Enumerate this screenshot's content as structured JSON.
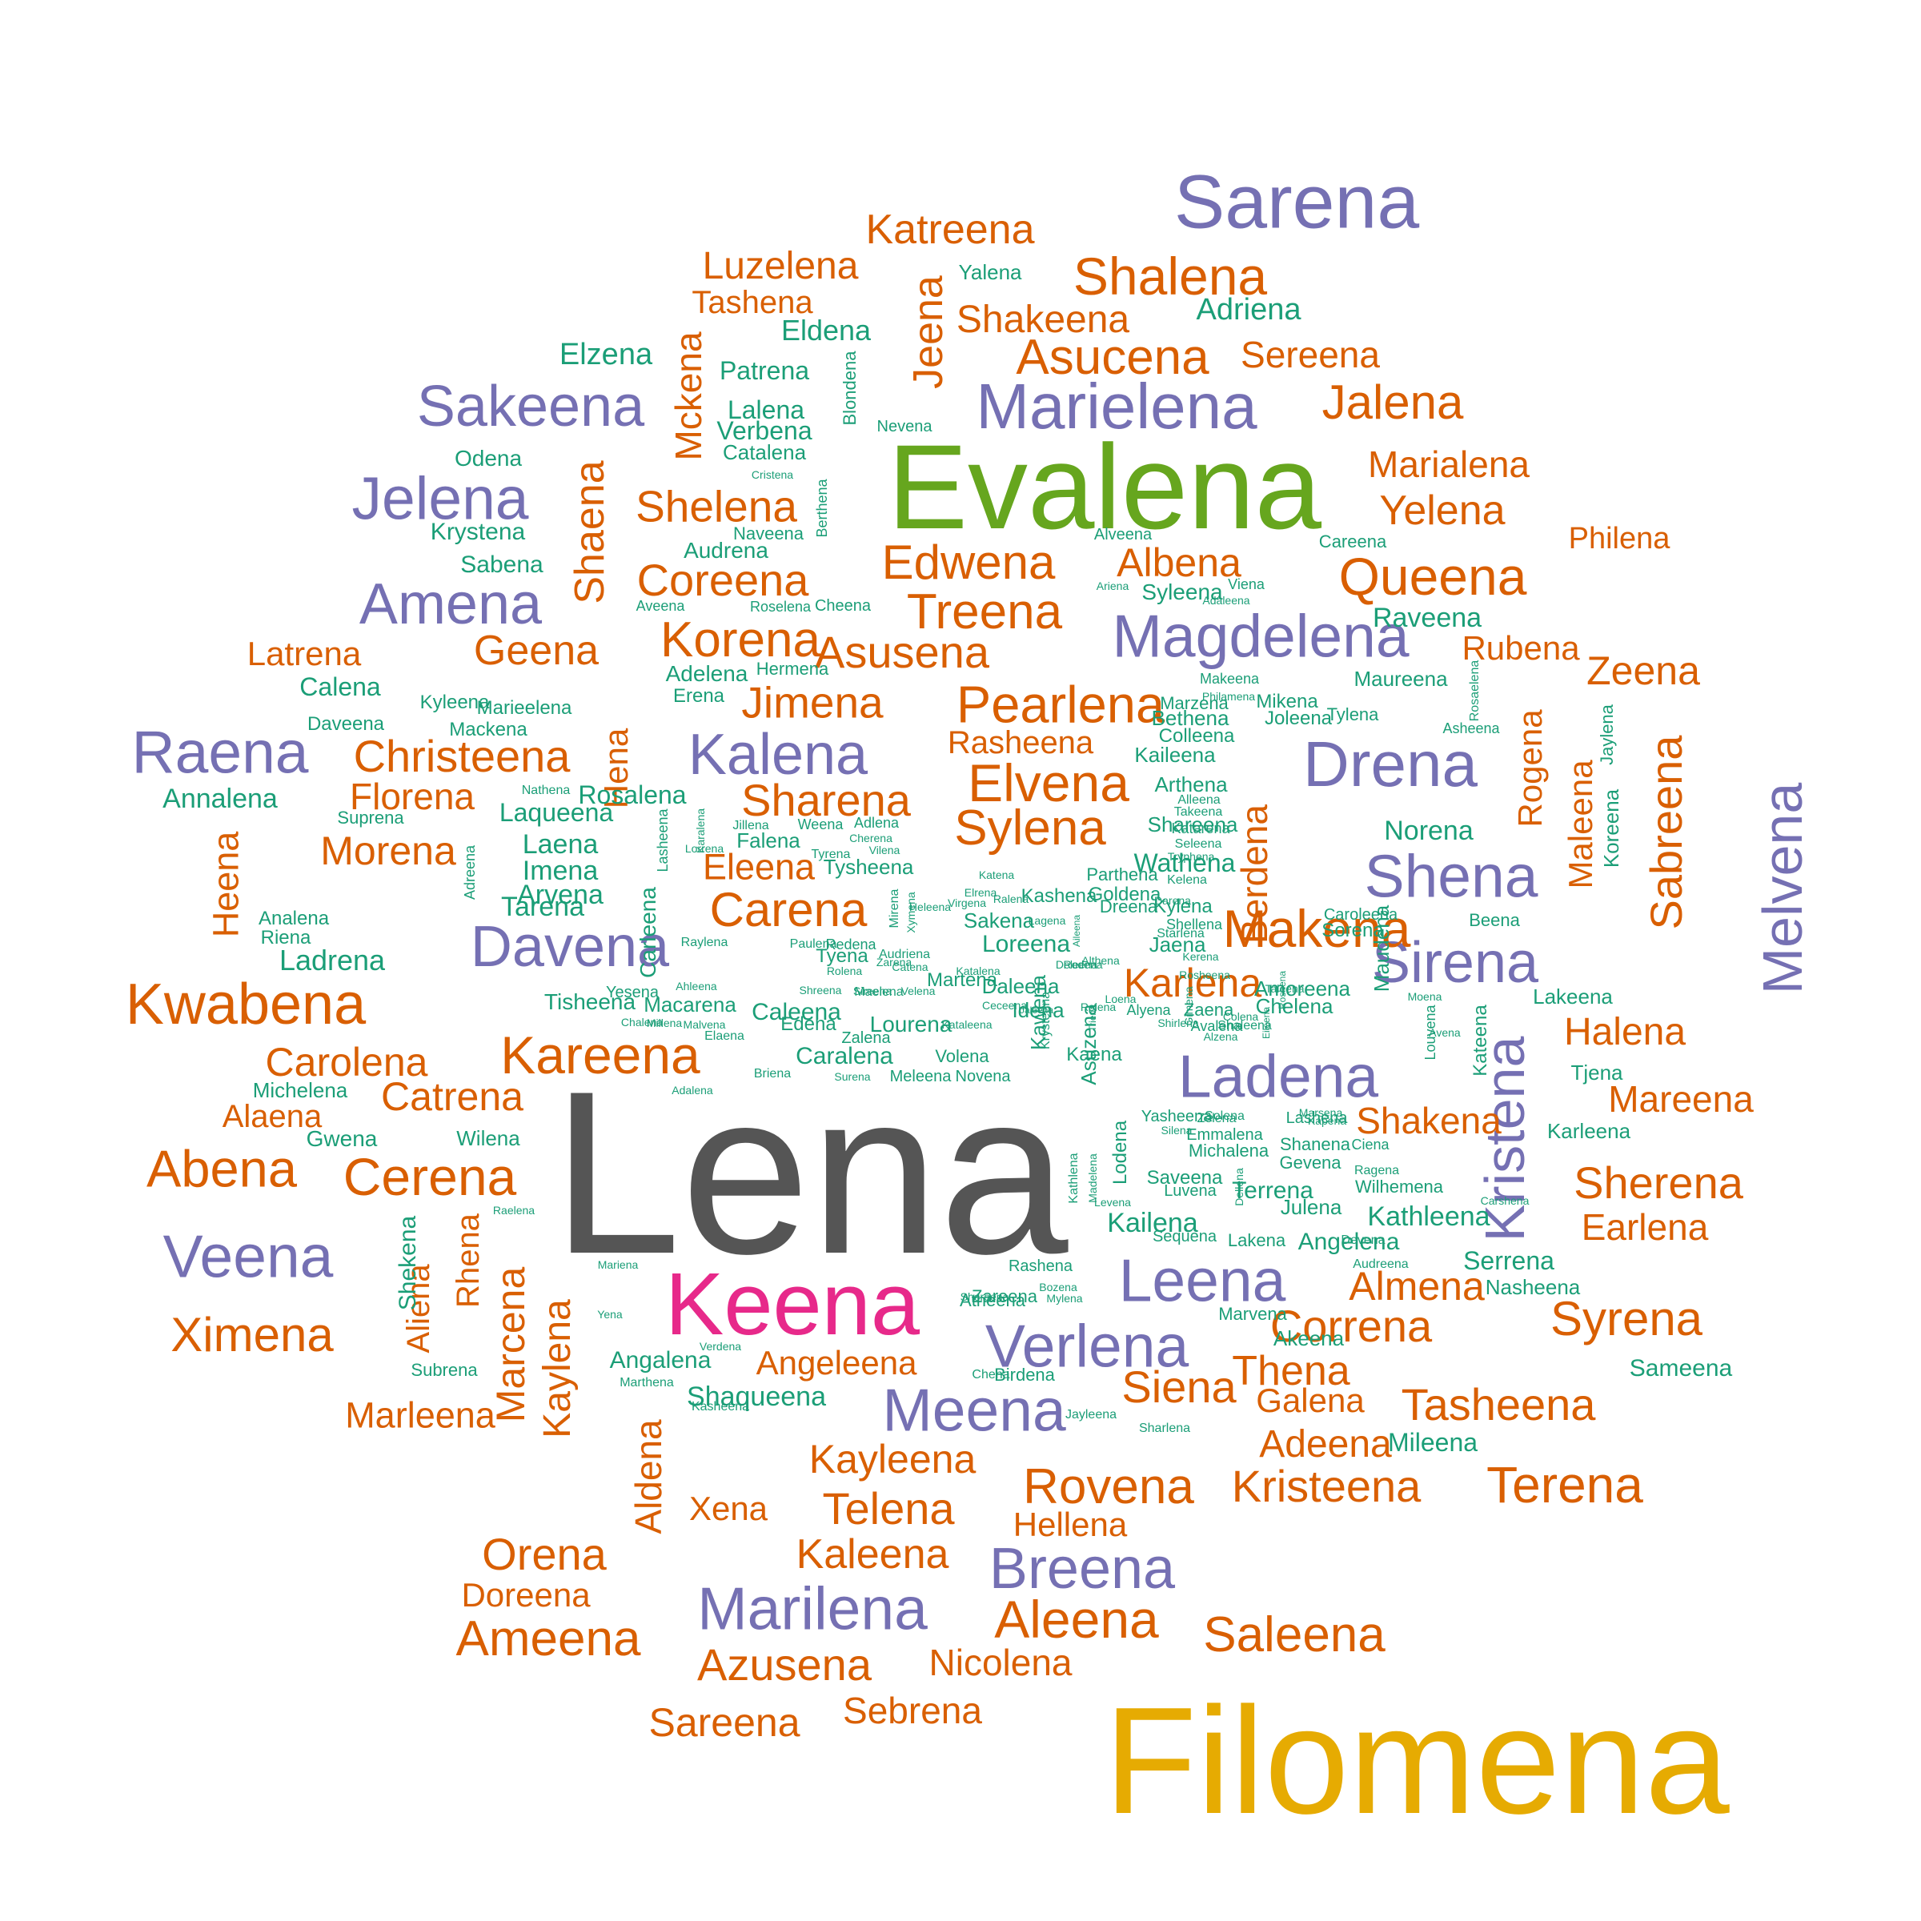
{
  "palette": {
    "orange": "#d95f02",
    "teal": "#1b9e77",
    "purple": "#7570b3",
    "green": "#66a61e",
    "pink": "#e7298a",
    "gold": "#e6ab02",
    "gray": "#555555"
  },
  "words": [
    {
      "t": "Lena",
      "c": 6
    },
    {
      "t": "Filomena",
      "c": 5
    },
    {
      "t": "Evalena",
      "c": 3
    },
    {
      "t": "Keena",
      "c": 4
    },
    {
      "t": "Sarena",
      "c": 2
    },
    {
      "t": "Marielena",
      "c": 2
    },
    {
      "t": "Magdelena",
      "c": 2
    },
    {
      "t": "Drena",
      "c": 2
    },
    {
      "t": "Shena",
      "c": 2
    },
    {
      "t": "Sirena",
      "c": 2
    },
    {
      "t": "Melvena",
      "c": 2
    },
    {
      "t": "Ladena",
      "c": 2
    },
    {
      "t": "Kristena",
      "c": 2
    },
    {
      "t": "Leena",
      "c": 2
    },
    {
      "t": "Verlena",
      "c": 2
    },
    {
      "t": "Meena",
      "c": 2
    },
    {
      "t": "Breena",
      "c": 2
    },
    {
      "t": "Marilena",
      "c": 2
    },
    {
      "t": "Sakeena",
      "c": 2
    },
    {
      "t": "Jelena",
      "c": 2
    },
    {
      "t": "Amena",
      "c": 2
    },
    {
      "t": "Raena",
      "c": 2
    },
    {
      "t": "Veena",
      "c": 2
    },
    {
      "t": "Davena",
      "c": 2
    },
    {
      "t": "Kalena",
      "c": 2
    },
    {
      "t": "Katreena",
      "c": 0
    },
    {
      "t": "Luzelena",
      "c": 0
    },
    {
      "t": "Tashena",
      "c": 0
    },
    {
      "t": "Shalena",
      "c": 0
    },
    {
      "t": "Shakeena",
      "c": 0
    },
    {
      "t": "Asucena",
      "c": 0
    },
    {
      "t": "Sereena",
      "c": 0
    },
    {
      "t": "Jalena",
      "c": 0
    },
    {
      "t": "Jeena",
      "c": 0
    },
    {
      "t": "Mckena",
      "c": 0
    },
    {
      "t": "Shaena",
      "c": 0
    },
    {
      "t": "Marialena",
      "c": 0
    },
    {
      "t": "Yelena",
      "c": 0
    },
    {
      "t": "Philena",
      "c": 0
    },
    {
      "t": "Queena",
      "c": 0
    },
    {
      "t": "Shelena",
      "c": 0
    },
    {
      "t": "Coreena",
      "c": 0
    },
    {
      "t": "Edwena",
      "c": 0
    },
    {
      "t": "Albena",
      "c": 0
    },
    {
      "t": "Treena",
      "c": 0
    },
    {
      "t": "Korena",
      "c": 0
    },
    {
      "t": "Asusena",
      "c": 0
    },
    {
      "t": "Geena",
      "c": 0
    },
    {
      "t": "Latrena",
      "c": 0
    },
    {
      "t": "Rubena",
      "c": 0
    },
    {
      "t": "Zeena",
      "c": 0
    },
    {
      "t": "Jimena",
      "c": 0
    },
    {
      "t": "Pearlena",
      "c": 0
    },
    {
      "t": "Christeena",
      "c": 0
    },
    {
      "t": "Rasheena",
      "c": 0
    },
    {
      "t": "Florena",
      "c": 0
    },
    {
      "t": "Sharena",
      "c": 0
    },
    {
      "t": "Elvena",
      "c": 0
    },
    {
      "t": "Hena",
      "c": 0
    },
    {
      "t": "Rogena",
      "c": 0
    },
    {
      "t": "Maleena",
      "c": 0
    },
    {
      "t": "Sabreena",
      "c": 0
    },
    {
      "t": "Heena",
      "c": 0
    },
    {
      "t": "Morena",
      "c": 0
    },
    {
      "t": "Sylena",
      "c": 0
    },
    {
      "t": "Berdena",
      "c": 0
    },
    {
      "t": "Makena",
      "c": 0
    },
    {
      "t": "Eleena",
      "c": 0
    },
    {
      "t": "Carena",
      "c": 0
    },
    {
      "t": "Kwabena",
      "c": 0
    },
    {
      "t": "Karlena",
      "c": 0
    },
    {
      "t": "Halena",
      "c": 0
    },
    {
      "t": "Kareena",
      "c": 0
    },
    {
      "t": "Carolena",
      "c": 0
    },
    {
      "t": "Catrena",
      "c": 0
    },
    {
      "t": "Mareena",
      "c": 0
    },
    {
      "t": "Alaena",
      "c": 0
    },
    {
      "t": "Shakena",
      "c": 0
    },
    {
      "t": "Abena",
      "c": 0
    },
    {
      "t": "Cerena",
      "c": 0
    },
    {
      "t": "Sherena",
      "c": 0
    },
    {
      "t": "Earlena",
      "c": 0
    },
    {
      "t": "Aliena",
      "c": 0
    },
    {
      "t": "Rhena",
      "c": 0
    },
    {
      "t": "Marcena",
      "c": 0
    },
    {
      "t": "Kaylena",
      "c": 0
    },
    {
      "t": "Almena",
      "c": 0
    },
    {
      "t": "Ximena",
      "c": 0
    },
    {
      "t": "Correna",
      "c": 0
    },
    {
      "t": "Syrena",
      "c": 0
    },
    {
      "t": "Angeleena",
      "c": 0
    },
    {
      "t": "Thena",
      "c": 0
    },
    {
      "t": "Siena",
      "c": 0
    },
    {
      "t": "Galena",
      "c": 0
    },
    {
      "t": "Tasheena",
      "c": 0
    },
    {
      "t": "Marleena",
      "c": 0
    },
    {
      "t": "Adeena",
      "c": 0
    },
    {
      "t": "Kayleena",
      "c": 0
    },
    {
      "t": "Aldena",
      "c": 0
    },
    {
      "t": "Terena",
      "c": 0
    },
    {
      "t": "Rovena",
      "c": 0
    },
    {
      "t": "Kristeena",
      "c": 0
    },
    {
      "t": "Xena",
      "c": 0
    },
    {
      "t": "Telena",
      "c": 0
    },
    {
      "t": "Hellena",
      "c": 0
    },
    {
      "t": "Orena",
      "c": 0
    },
    {
      "t": "Kaleena",
      "c": 0
    },
    {
      "t": "Doreena",
      "c": 0
    },
    {
      "t": "Aleena",
      "c": 0
    },
    {
      "t": "Saleena",
      "c": 0
    },
    {
      "t": "Ameena",
      "c": 0
    },
    {
      "t": "Azusena",
      "c": 0
    },
    {
      "t": "Nicolena",
      "c": 0
    },
    {
      "t": "Sareena",
      "c": 0
    },
    {
      "t": "Sebrena",
      "c": 0
    },
    {
      "t": "Yalena",
      "c": 1
    },
    {
      "t": "Adriena",
      "c": 1
    },
    {
      "t": "Eldena",
      "c": 1
    },
    {
      "t": "Elzena",
      "c": 1
    },
    {
      "t": "Patrena",
      "c": 1
    },
    {
      "t": "Blondena",
      "c": 1
    },
    {
      "t": "Lalena",
      "c": 1
    },
    {
      "t": "Verbena",
      "c": 1
    },
    {
      "t": "Nevena",
      "c": 1
    },
    {
      "t": "Odena",
      "c": 1
    },
    {
      "t": "Catalena",
      "c": 1
    },
    {
      "t": "Cristena",
      "c": 1
    },
    {
      "t": "Berthena",
      "c": 1
    },
    {
      "t": "Krystena",
      "c": 1
    },
    {
      "t": "Naveena",
      "c": 1
    },
    {
      "t": "Audrena",
      "c": 1
    },
    {
      "t": "Alveena",
      "c": 1
    },
    {
      "t": "Careena",
      "c": 1
    },
    {
      "t": "Sabena",
      "c": 1
    },
    {
      "t": "Ariena",
      "c": 1
    },
    {
      "t": "Viena",
      "c": 1
    },
    {
      "t": "Syleena",
      "c": 1
    },
    {
      "t": "Adaleena",
      "c": 1
    },
    {
      "t": "Raveena",
      "c": 1
    },
    {
      "t": "Aveena",
      "c": 1
    },
    {
      "t": "Roselena",
      "c": 1
    },
    {
      "t": "Cheena",
      "c": 1
    },
    {
      "t": "Calena",
      "c": 1
    },
    {
      "t": "Adelena",
      "c": 1
    },
    {
      "t": "Hermena",
      "c": 1
    },
    {
      "t": "Makeena",
      "c": 1
    },
    {
      "t": "Maureena",
      "c": 1
    },
    {
      "t": "Philamena",
      "c": 1
    },
    {
      "t": "Erena",
      "c": 1
    },
    {
      "t": "Marzena",
      "c": 1
    },
    {
      "t": "Tylena",
      "c": 1
    },
    {
      "t": "Rosaelena",
      "c": 1
    },
    {
      "t": "Kyleena",
      "c": 1
    },
    {
      "t": "Marieelena",
      "c": 1
    },
    {
      "t": "Mikena",
      "c": 1
    },
    {
      "t": "Daveena",
      "c": 1
    },
    {
      "t": "Mackena",
      "c": 1
    },
    {
      "t": "Bethena",
      "c": 1
    },
    {
      "t": "Joleena",
      "c": 1
    },
    {
      "t": "Asheena",
      "c": 1
    },
    {
      "t": "Jaylena",
      "c": 1
    },
    {
      "t": "Colleena",
      "c": 1
    },
    {
      "t": "Kaileena",
      "c": 1
    },
    {
      "t": "Nathena",
      "c": 1
    },
    {
      "t": "Rosalena",
      "c": 1
    },
    {
      "t": "Annalena",
      "c": 1
    },
    {
      "t": "Arthena",
      "c": 1
    },
    {
      "t": "Alleena",
      "c": 1
    },
    {
      "t": "Shareena",
      "c": 1
    },
    {
      "t": "Koreena",
      "c": 1
    },
    {
      "t": "Suprena",
      "c": 1
    },
    {
      "t": "Laqueena",
      "c": 1
    },
    {
      "t": "Karalena",
      "c": 1
    },
    {
      "t": "Lasheena",
      "c": 1
    },
    {
      "t": "Jillena",
      "c": 1
    },
    {
      "t": "Weena",
      "c": 1
    },
    {
      "t": "Adlena",
      "c": 1
    },
    {
      "t": "Takeena",
      "c": 1
    },
    {
      "t": "Katarena",
      "c": 1
    },
    {
      "t": "Seleena",
      "c": 1
    },
    {
      "t": "Norena",
      "c": 1
    },
    {
      "t": "Laena",
      "c": 1
    },
    {
      "t": "Lorrena",
      "c": 1
    },
    {
      "t": "Falena",
      "c": 1
    },
    {
      "t": "Cherena",
      "c": 1
    },
    {
      "t": "Vilena",
      "c": 1
    },
    {
      "t": "Tryphena",
      "c": 1
    },
    {
      "t": "Imena",
      "c": 1
    },
    {
      "t": "Tyrena",
      "c": 1
    },
    {
      "t": "Wathena",
      "c": 1
    },
    {
      "t": "Adreena",
      "c": 1
    },
    {
      "t": "Arvena",
      "c": 1
    },
    {
      "t": "Tysheena",
      "c": 1
    },
    {
      "t": "Katena",
      "c": 1
    },
    {
      "t": "Parthena",
      "c": 1
    },
    {
      "t": "Kelena",
      "c": 1
    },
    {
      "t": "Elrena",
      "c": 1
    },
    {
      "t": "Ralena",
      "c": 1
    },
    {
      "t": "Kashena",
      "c": 1
    },
    {
      "t": "Goldena",
      "c": 1
    },
    {
      "t": "Tarena",
      "c": 1
    },
    {
      "t": "Carleena",
      "c": 1
    },
    {
      "t": "Darena",
      "c": 1
    },
    {
      "t": "Caroleena",
      "c": 1
    },
    {
      "t": "Analena",
      "c": 1
    },
    {
      "t": "Mirena",
      "c": 1
    },
    {
      "t": "Virgena",
      "c": 1
    },
    {
      "t": "Dreena",
      "c": 1
    },
    {
      "t": "Kylena",
      "c": 1
    },
    {
      "t": "Shellena",
      "c": 1
    },
    {
      "t": "Beena",
      "c": 1
    },
    {
      "t": "Riena",
      "c": 1
    },
    {
      "t": "Xymena",
      "c": 1
    },
    {
      "t": "Heleena",
      "c": 1
    },
    {
      "t": "Sakena",
      "c": 1
    },
    {
      "t": "Lagena",
      "c": 1
    },
    {
      "t": "Starlena",
      "c": 1
    },
    {
      "t": "Maudena",
      "c": 1
    },
    {
      "t": "Ladrena",
      "c": 1
    },
    {
      "t": "Raylena",
      "c": 1
    },
    {
      "t": "Paulena",
      "c": 1
    },
    {
      "t": "Redena",
      "c": 1
    },
    {
      "t": "Loreena",
      "c": 1
    },
    {
      "t": "Aileena",
      "c": 1
    },
    {
      "t": "Jaena",
      "c": 1
    },
    {
      "t": "Sorena",
      "c": 1
    },
    {
      "t": "Audriena",
      "c": 1
    },
    {
      "t": "Zarena",
      "c": 1
    },
    {
      "t": "Kerena",
      "c": 1
    },
    {
      "t": "Rodena",
      "c": 1
    },
    {
      "t": "Tyena",
      "c": 1
    },
    {
      "t": "Catena",
      "c": 1
    },
    {
      "t": "Rolena",
      "c": 1
    },
    {
      "t": "Martena",
      "c": 1
    },
    {
      "t": "Deleena",
      "c": 1
    },
    {
      "t": "Daleena",
      "c": 1
    },
    {
      "t": "Amoreena",
      "c": 1
    },
    {
      "t": "Ahleena",
      "c": 1
    },
    {
      "t": "Shreena",
      "c": 1
    },
    {
      "t": "Roshena",
      "c": 1
    },
    {
      "t": "Sireena",
      "c": 1
    },
    {
      "t": "Yesena",
      "c": 1
    },
    {
      "t": "Velena",
      "c": 1
    },
    {
      "t": "Katalena",
      "c": 1
    },
    {
      "t": "Althena",
      "c": 1
    },
    {
      "t": "Taleena",
      "c": 1
    },
    {
      "t": "Chelena",
      "c": 1
    },
    {
      "t": "Rosheena",
      "c": 1
    },
    {
      "t": "Maelena",
      "c": 1
    },
    {
      "t": "Gimena",
      "c": 1
    },
    {
      "t": "Loena",
      "c": 1
    },
    {
      "t": "Idena",
      "c": 1
    },
    {
      "t": "Jaleena",
      "c": 1
    },
    {
      "t": "Ceceena",
      "c": 1
    },
    {
      "t": "Alyena",
      "c": 1
    },
    {
      "t": "Zaena",
      "c": 1
    },
    {
      "t": "Moena",
      "c": 1
    },
    {
      "t": "Lakeena",
      "c": 1
    },
    {
      "t": "Macarena",
      "c": 1
    },
    {
      "t": "Caleena",
      "c": 1
    },
    {
      "t": "Relena",
      "c": 1
    },
    {
      "t": "Shirlena",
      "c": 1
    },
    {
      "t": "Colena",
      "c": 1
    },
    {
      "t": "Kataleena",
      "c": 1
    },
    {
      "t": "Tisheena",
      "c": 1
    },
    {
      "t": "Chalena",
      "c": 1
    },
    {
      "t": "Millena",
      "c": 1
    },
    {
      "t": "Malvena",
      "c": 1
    },
    {
      "t": "Edena",
      "c": 1
    },
    {
      "t": "Lourena",
      "c": 1
    },
    {
      "t": "Avalena",
      "c": 1
    },
    {
      "t": "Shaleena",
      "c": 1
    },
    {
      "t": "Kawena",
      "c": 1
    },
    {
      "t": "Krysteena",
      "c": 1
    },
    {
      "t": "Triena",
      "c": 1
    },
    {
      "t": "Louvena",
      "c": 1
    },
    {
      "t": "Avena",
      "c": 1
    },
    {
      "t": "Kateena",
      "c": 1
    },
    {
      "t": "Elaena",
      "c": 1
    },
    {
      "t": "Zalena",
      "c": 1
    },
    {
      "t": "Alzena",
      "c": 1
    },
    {
      "t": "Asuzena",
      "c": 1
    },
    {
      "t": "Caralena",
      "c": 1
    },
    {
      "t": "Volena",
      "c": 1
    },
    {
      "t": "Kaena",
      "c": 1
    },
    {
      "t": "Eileena",
      "c": 1
    },
    {
      "t": "Briena",
      "c": 1
    },
    {
      "t": "Surena",
      "c": 1
    },
    {
      "t": "Meleena",
      "c": 1
    },
    {
      "t": "Novena",
      "c": 1
    },
    {
      "t": "Tjena",
      "c": 1
    },
    {
      "t": "Adalena",
      "c": 1
    },
    {
      "t": "Michelena",
      "c": 1
    },
    {
      "t": "Marsena",
      "c": 1
    },
    {
      "t": "Kapena",
      "c": 1
    },
    {
      "t": "Yasheena",
      "c": 1
    },
    {
      "t": "Solena",
      "c": 1
    },
    {
      "t": "Lashena",
      "c": 1
    },
    {
      "t": "Zelena",
      "c": 1
    },
    {
      "t": "Gwena",
      "c": 1
    },
    {
      "t": "Wilena",
      "c": 1
    },
    {
      "t": "Lodena",
      "c": 1
    },
    {
      "t": "Silena",
      "c": 1
    },
    {
      "t": "Emmalena",
      "c": 1
    },
    {
      "t": "Karleena",
      "c": 1
    },
    {
      "t": "Michalena",
      "c": 1
    },
    {
      "t": "Shanena",
      "c": 1
    },
    {
      "t": "Ciena",
      "c": 1
    },
    {
      "t": "Madelena",
      "c": 1
    },
    {
      "t": "Kathlena",
      "c": 1
    },
    {
      "t": "Saveena",
      "c": 1
    },
    {
      "t": "Gevena",
      "c": 1
    },
    {
      "t": "Ragena",
      "c": 1
    },
    {
      "t": "Luvena",
      "c": 1
    },
    {
      "t": "Dellena",
      "c": 1
    },
    {
      "t": "Terrena",
      "c": 1
    },
    {
      "t": "Wilhemena",
      "c": 1
    },
    {
      "t": "Raelena",
      "c": 1
    },
    {
      "t": "Levena",
      "c": 1
    },
    {
      "t": "Julena",
      "c": 1
    },
    {
      "t": "Kathleena",
      "c": 1
    },
    {
      "t": "Kailena",
      "c": 1
    },
    {
      "t": "Carshena",
      "c": 1
    },
    {
      "t": "Devena",
      "c": 1
    },
    {
      "t": "Sequena",
      "c": 1
    },
    {
      "t": "Lakena",
      "c": 1
    },
    {
      "t": "Angelena",
      "c": 1
    },
    {
      "t": "Serrena",
      "c": 1
    },
    {
      "t": "Mariena",
      "c": 1
    },
    {
      "t": "Rashena",
      "c": 1
    },
    {
      "t": "Audreena",
      "c": 1
    },
    {
      "t": "Zareena",
      "c": 1
    },
    {
      "t": "Bozena",
      "c": 1
    },
    {
      "t": "Atheena",
      "c": 1
    },
    {
      "t": "Nasheena",
      "c": 1
    },
    {
      "t": "Shekena",
      "c": 1
    },
    {
      "t": "Shereena",
      "c": 1
    },
    {
      "t": "Mylena",
      "c": 1
    },
    {
      "t": "Yena",
      "c": 1
    },
    {
      "t": "Marvena",
      "c": 1
    },
    {
      "t": "Akeena",
      "c": 1
    },
    {
      "t": "Verdena",
      "c": 1
    },
    {
      "t": "Angalena",
      "c": 1
    },
    {
      "t": "Sameena",
      "c": 1
    },
    {
      "t": "Subrena",
      "c": 1
    },
    {
      "t": "Marthena",
      "c": 1
    },
    {
      "t": "Chena",
      "c": 1
    },
    {
      "t": "Birdena",
      "c": 1
    },
    {
      "t": "Shaqueena",
      "c": 1
    },
    {
      "t": "Kasheena",
      "c": 1
    },
    {
      "t": "Jayleena",
      "c": 1
    },
    {
      "t": "Sharlena",
      "c": 1
    },
    {
      "t": "Mileena",
      "c": 1
    }
  ]
}
